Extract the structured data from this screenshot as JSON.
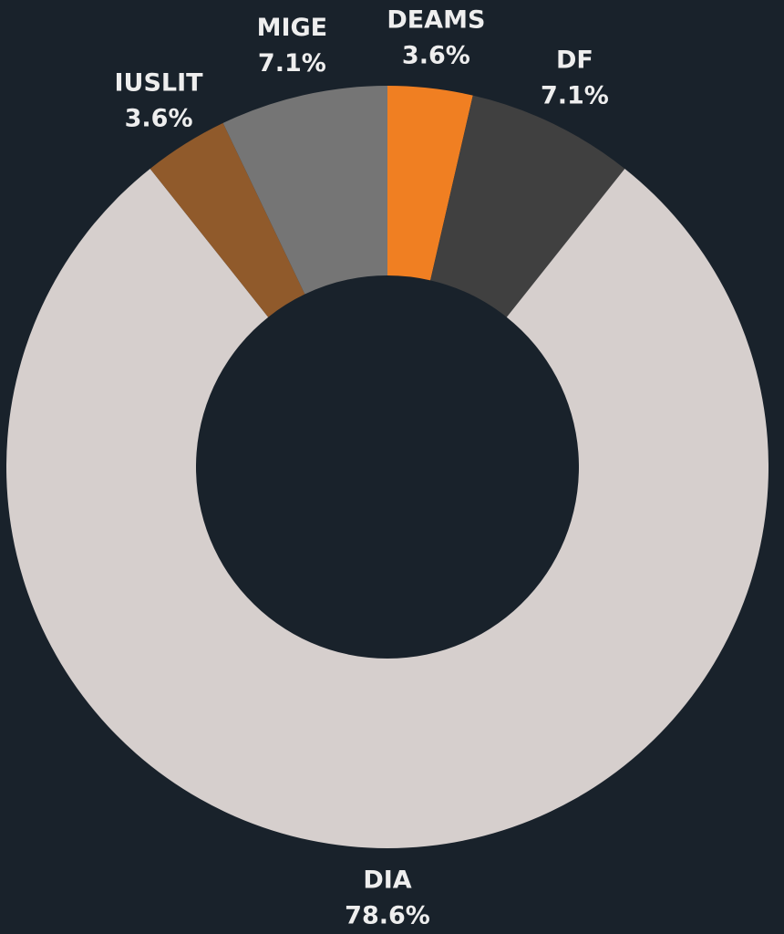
{
  "chart_data": {
    "type": "donut",
    "categories": [
      "DEAMS",
      "DF",
      "DIA",
      "IUSLIT",
      "MIGE"
    ],
    "values": [
      3.6,
      7.1,
      78.6,
      3.6,
      7.1
    ],
    "value_labels": [
      "3.6%",
      "7.1%",
      "78.6%",
      "3.6%",
      "7.1%"
    ],
    "colors": [
      "#f07f22",
      "#404040",
      "#d6cfcd",
      "#905a2b",
      "#757575"
    ]
  }
}
